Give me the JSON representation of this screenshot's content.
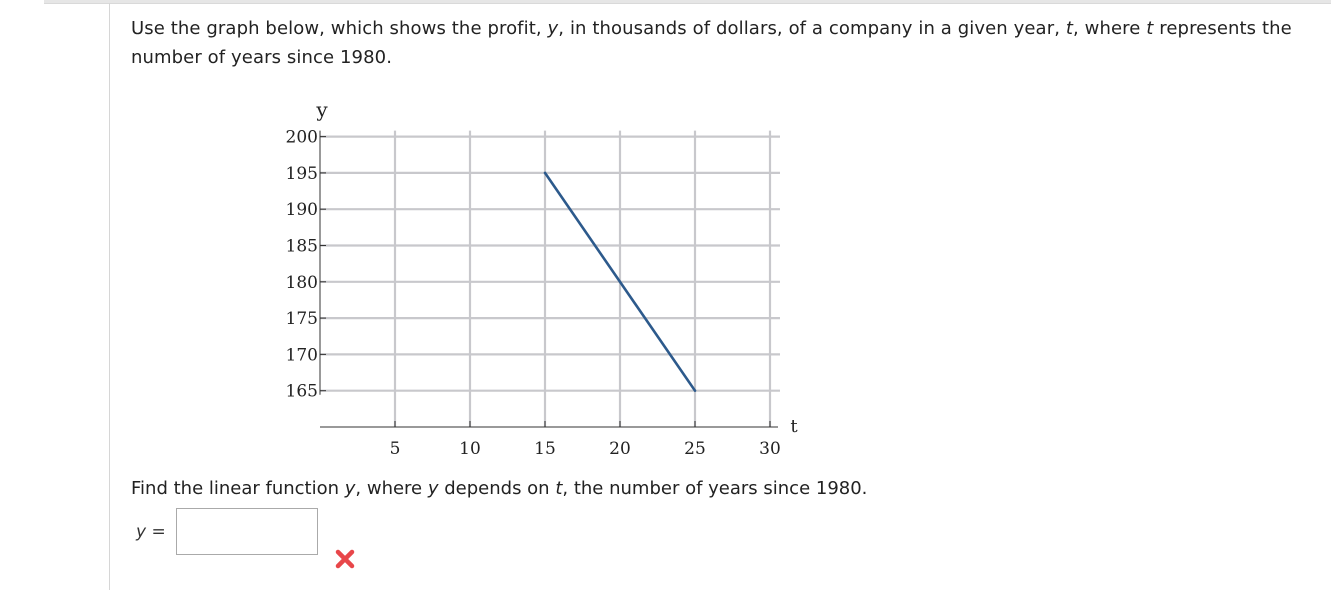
{
  "question": {
    "p1": "Use the graph below, which shows the profit, ",
    "v_y": "y",
    "p2": ", in thousands of dollars, of a company in a given year, ",
    "v_t": "t",
    "p3": ", where ",
    "v_t2": "t",
    "p4": " represents the number of years since 1980."
  },
  "chart_data": {
    "type": "line",
    "xlabel": "t",
    "ylabel": "y",
    "x_ticks": [
      5,
      10,
      15,
      20,
      25,
      30
    ],
    "y_ticks": [
      165,
      170,
      175,
      180,
      185,
      190,
      195,
      200
    ],
    "xlim": [
      0,
      30
    ],
    "ylim": [
      160,
      200
    ],
    "grid": true,
    "series": [
      {
        "x": [
          15,
          25
        ],
        "y": [
          195,
          165
        ],
        "color": "#2d5a8c"
      }
    ]
  },
  "find": {
    "p1": "Find the linear function ",
    "v_y": "y",
    "p2": ", where ",
    "v_y2": "y",
    "p3": " depends on ",
    "v_t": "t",
    "p4": ", the number of years since 1980."
  },
  "answer": {
    "var": "y",
    "eq": " =",
    "value": "",
    "status_icon": "red-x-icon",
    "status_color": "#e8474a"
  }
}
